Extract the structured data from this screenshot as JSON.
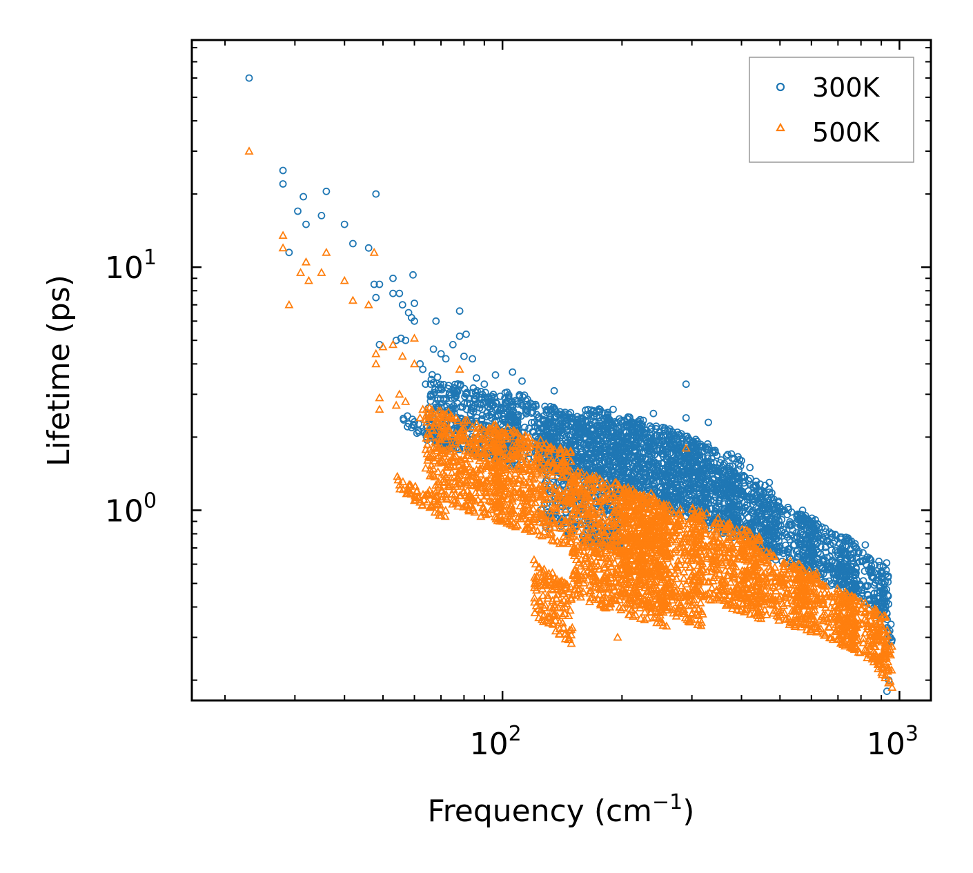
{
  "chart_data": {
    "type": "scatter",
    "title": "",
    "xlabel": "Frequency (cm",
    "xlabel_exp": "−1",
    "xlabel_close": ")",
    "ylabel": "Lifetime (ps)",
    "xscale": "log",
    "yscale": "log",
    "xlim": [
      16.5,
      1200
    ],
    "ylim": [
      0.165,
      86
    ],
    "x_ticks": [
      {
        "value": 100,
        "base": "10",
        "exp": "2"
      },
      {
        "value": 1000,
        "base": "10",
        "exp": "3"
      }
    ],
    "y_ticks": [
      {
        "value": 1,
        "base": "10",
        "exp": "0"
      },
      {
        "value": 10,
        "base": "10",
        "exp": "1"
      }
    ],
    "legend_position": "top-right",
    "series": [
      {
        "name": "300K",
        "color": "#1f77b4",
        "marker": "circle",
        "points": [
          [
            23,
            60
          ],
          [
            28,
            25
          ],
          [
            28,
            22
          ],
          [
            29,
            11.5
          ],
          [
            30.5,
            17
          ],
          [
            31.5,
            19.5
          ],
          [
            32,
            15
          ],
          [
            35,
            16.3
          ],
          [
            36,
            20.5
          ],
          [
            40,
            15
          ],
          [
            42,
            12.5
          ],
          [
            46,
            12
          ],
          [
            47.5,
            8.5
          ],
          [
            48,
            7.5
          ],
          [
            48,
            20
          ],
          [
            49,
            4.8
          ],
          [
            49,
            8.5
          ],
          [
            53,
            9
          ],
          [
            53,
            7.8
          ],
          [
            54,
            5
          ],
          [
            55,
            7.8
          ],
          [
            55.5,
            5.1
          ],
          [
            56,
            7
          ],
          [
            57,
            5.0
          ],
          [
            58,
            6.5
          ],
          [
            59,
            6.2
          ],
          [
            59.5,
            9.3
          ],
          [
            60,
            6.0
          ],
          [
            60,
            7.1
          ],
          [
            62,
            4.0
          ],
          [
            63,
            3.8
          ],
          [
            64,
            3.3
          ],
          [
            66,
            3.0
          ],
          [
            67,
            4.6
          ],
          [
            68,
            6.0
          ],
          [
            70,
            4.4
          ],
          [
            72,
            4.2
          ],
          [
            75,
            4.8
          ],
          [
            78,
            5.2
          ],
          [
            78,
            6.6
          ],
          [
            80,
            4.3
          ],
          [
            81,
            5.3
          ],
          [
            84,
            4.2
          ],
          [
            86,
            3.5
          ],
          [
            90,
            3.3
          ],
          [
            96,
            3.6
          ],
          [
            106,
            3.7
          ],
          [
            112,
            3.4
          ],
          [
            135,
            3.1
          ],
          [
            190,
            2.6
          ],
          [
            240,
            2.5
          ],
          [
            290,
            3.3
          ],
          [
            290,
            2.4
          ],
          [
            330,
            2.3
          ],
          [
            400,
            1.6
          ],
          [
            420,
            1.5
          ],
          [
            470,
            1.3
          ],
          [
            570,
            1.0
          ],
          [
            820,
            0.72
          ],
          [
            930,
            0.18
          ],
          [
            940,
            0.2
          ]
        ],
        "bands": [
          {
            "x": [
              56,
              78
            ],
            "y": [
              1.9,
              2.2
            ]
          },
          {
            "x": [
              65,
              110
            ],
            "y": [
              1.7,
              3.2
            ]
          },
          {
            "x": [
              100,
              160
            ],
            "y": [
              1.5,
              2.8
            ]
          },
          {
            "x": [
              125,
              200
            ],
            "y": [
              0.75,
              2.4
            ]
          },
          {
            "x": [
              160,
              260
            ],
            "y": [
              1.2,
              2.4
            ]
          },
          {
            "x": [
              200,
              320
            ],
            "y": [
              1.0,
              2.2
            ]
          },
          {
            "x": [
              260,
              400
            ],
            "y": [
              0.9,
              1.9
            ]
          },
          {
            "x": [
              320,
              500
            ],
            "y": [
              0.75,
              1.4
            ]
          },
          {
            "x": [
              420,
              620
            ],
            "y": [
              0.6,
              1.05
            ]
          },
          {
            "x": [
              550,
              780
            ],
            "y": [
              0.5,
              0.85
            ]
          },
          {
            "x": [
              700,
              940
            ],
            "y": [
              0.42,
              0.7
            ]
          },
          {
            "x": [
              860,
              960
            ],
            "y": [
              0.32,
              0.5
            ]
          }
        ]
      },
      {
        "name": "500K",
        "color": "#ff7f0e",
        "marker": "triangle",
        "points": [
          [
            23,
            30
          ],
          [
            28,
            13.5
          ],
          [
            28,
            12.0
          ],
          [
            29,
            7.0
          ],
          [
            31,
            9.5
          ],
          [
            32,
            10.5
          ],
          [
            32.5,
            8.8
          ],
          [
            35,
            9.5
          ],
          [
            36,
            11.5
          ],
          [
            40,
            8.8
          ],
          [
            42,
            7.3
          ],
          [
            46,
            7.0
          ],
          [
            47.5,
            11.5
          ],
          [
            48,
            4.4
          ],
          [
            48,
            4.0
          ],
          [
            49,
            2.6
          ],
          [
            49,
            2.9
          ],
          [
            50,
            4.7
          ],
          [
            53,
            4.8
          ],
          [
            54,
            2.7
          ],
          [
            55,
            3.0
          ],
          [
            56,
            4.3
          ],
          [
            57,
            2.8
          ],
          [
            60,
            4.0
          ],
          [
            60,
            5.1
          ],
          [
            62,
            2.4
          ],
          [
            63,
            2.6
          ],
          [
            66,
            2.5
          ],
          [
            68,
            2.3
          ],
          [
            70,
            2.4
          ],
          [
            72,
            2.2
          ],
          [
            78,
            3.8
          ],
          [
            80,
            2.3
          ],
          [
            84,
            2.2
          ],
          [
            100,
            2.1
          ],
          [
            108,
            2.0
          ],
          [
            140,
            1.8
          ],
          [
            195,
            0.3
          ],
          [
            290,
            1.8
          ],
          [
            350,
            0.85
          ]
        ],
        "bands": [
          {
            "x": [
              54,
              72
            ],
            "y": [
              1.05,
              1.25
            ]
          },
          {
            "x": [
              64,
              100
            ],
            "y": [
              1.0,
              2.4
            ]
          },
          {
            "x": [
              95,
              150
            ],
            "y": [
              0.8,
              2.0
            ]
          },
          {
            "x": [
              120,
              150
            ],
            "y": [
              0.32,
              0.55
            ]
          },
          {
            "x": [
              150,
              260
            ],
            "y": [
              0.38,
              1.3
            ]
          },
          {
            "x": [
              200,
              320
            ],
            "y": [
              0.38,
              1.1
            ]
          },
          {
            "x": [
              300,
              450
            ],
            "y": [
              0.4,
              0.9
            ]
          },
          {
            "x": [
              400,
              620
            ],
            "y": [
              0.35,
              0.65
            ]
          },
          {
            "x": [
              550,
              780
            ],
            "y": [
              0.3,
              0.5
            ]
          },
          {
            "x": [
              700,
              940
            ],
            "y": [
              0.25,
              0.42
            ]
          },
          {
            "x": [
              860,
              960
            ],
            "y": [
              0.2,
              0.33
            ]
          }
        ]
      }
    ]
  }
}
